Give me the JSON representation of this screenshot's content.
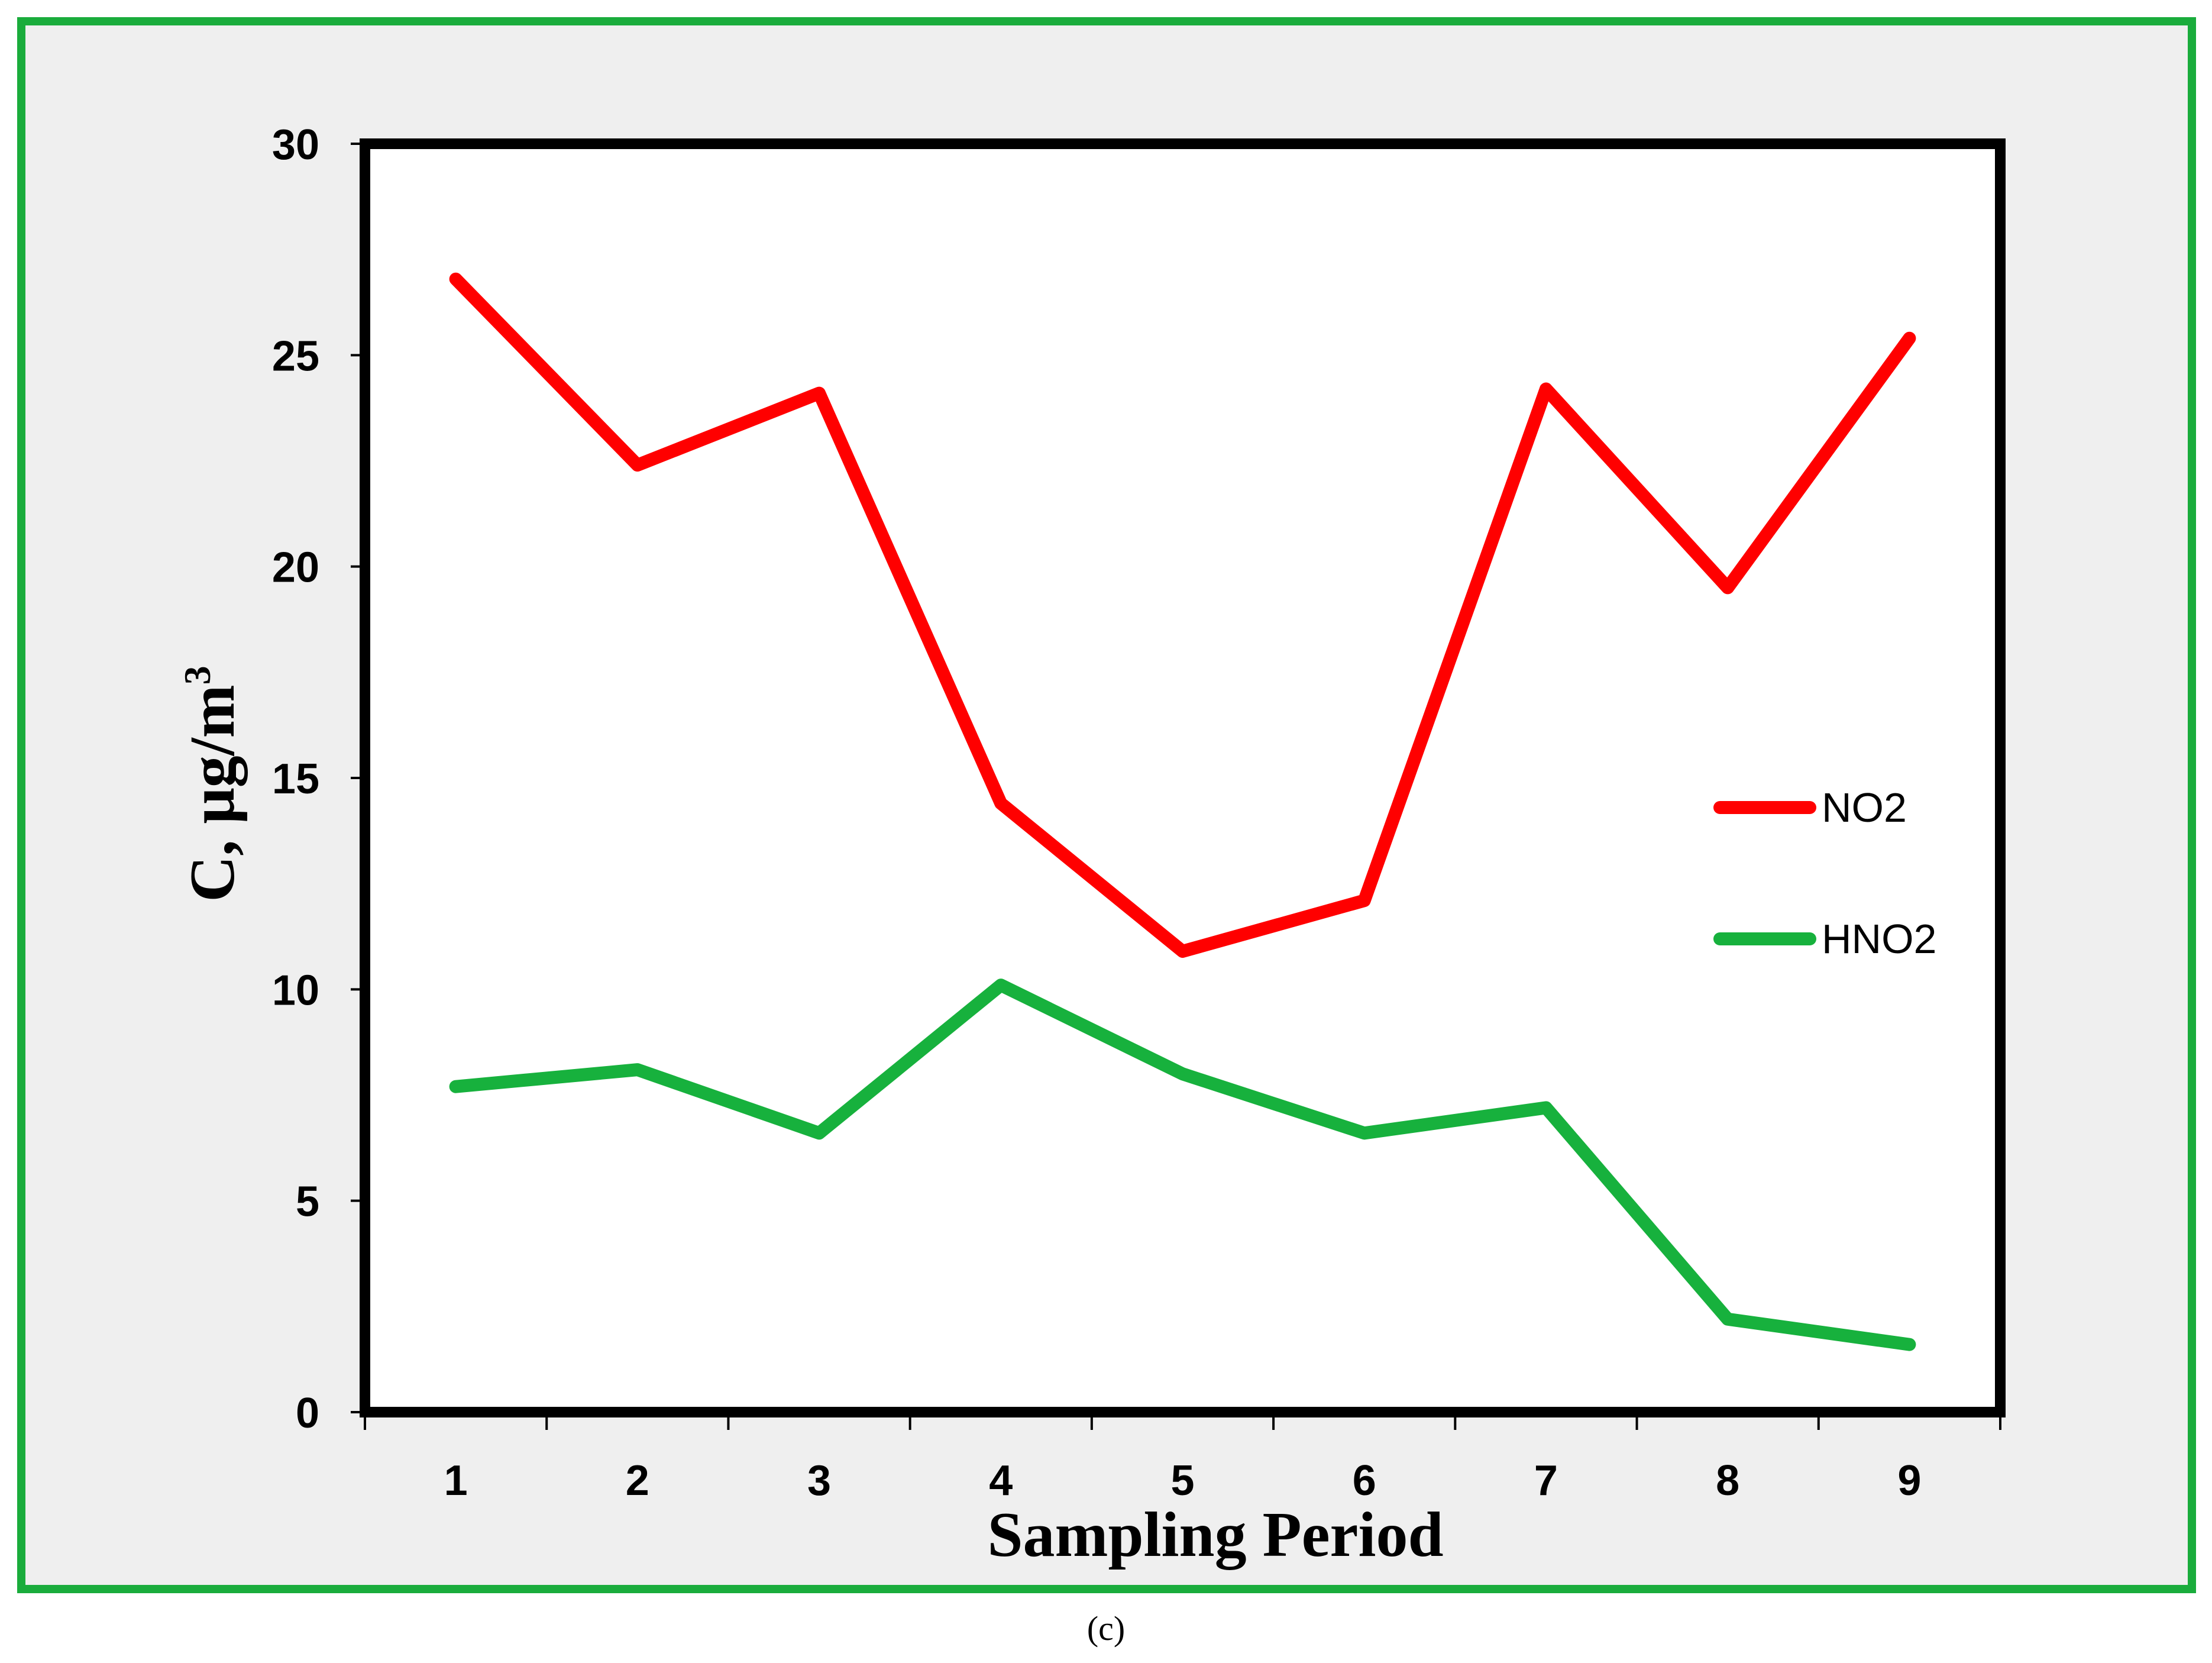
{
  "caption": "(c)",
  "colors": {
    "frame_border": "#1aac3c",
    "frame_background": "#efefef",
    "plot_background": "#ffffff",
    "axis": "#000000",
    "no2": "#ff0000",
    "hno2": "#17b13d"
  },
  "chart_data": {
    "type": "line",
    "title": "",
    "xlabel": "Sampling Period",
    "ylabel_main": "C, μg/m",
    "ylabel_superscript": "3",
    "categories": [
      "1",
      "2",
      "3",
      "4",
      "5",
      "6",
      "7",
      "8",
      "9"
    ],
    "x": [
      1,
      2,
      3,
      4,
      5,
      6,
      7,
      8,
      9
    ],
    "ylim": [
      0,
      30
    ],
    "yticks": [
      0,
      5,
      10,
      15,
      20,
      25,
      30
    ],
    "ytick_labels": [
      "0",
      "5",
      "10",
      "15",
      "20",
      "25",
      "30"
    ],
    "grid": false,
    "legend_position": "right",
    "series": [
      {
        "name": "NO2",
        "color": "#ff0000",
        "values": [
          26.8,
          22.4,
          24.1,
          14.4,
          10.9,
          12.1,
          24.2,
          19.5,
          25.4
        ]
      },
      {
        "name": "HNO2",
        "color": "#17b13d",
        "values": [
          7.7,
          8.1,
          6.6,
          10.1,
          8.0,
          6.6,
          7.2,
          2.2,
          1.6
        ]
      }
    ]
  }
}
